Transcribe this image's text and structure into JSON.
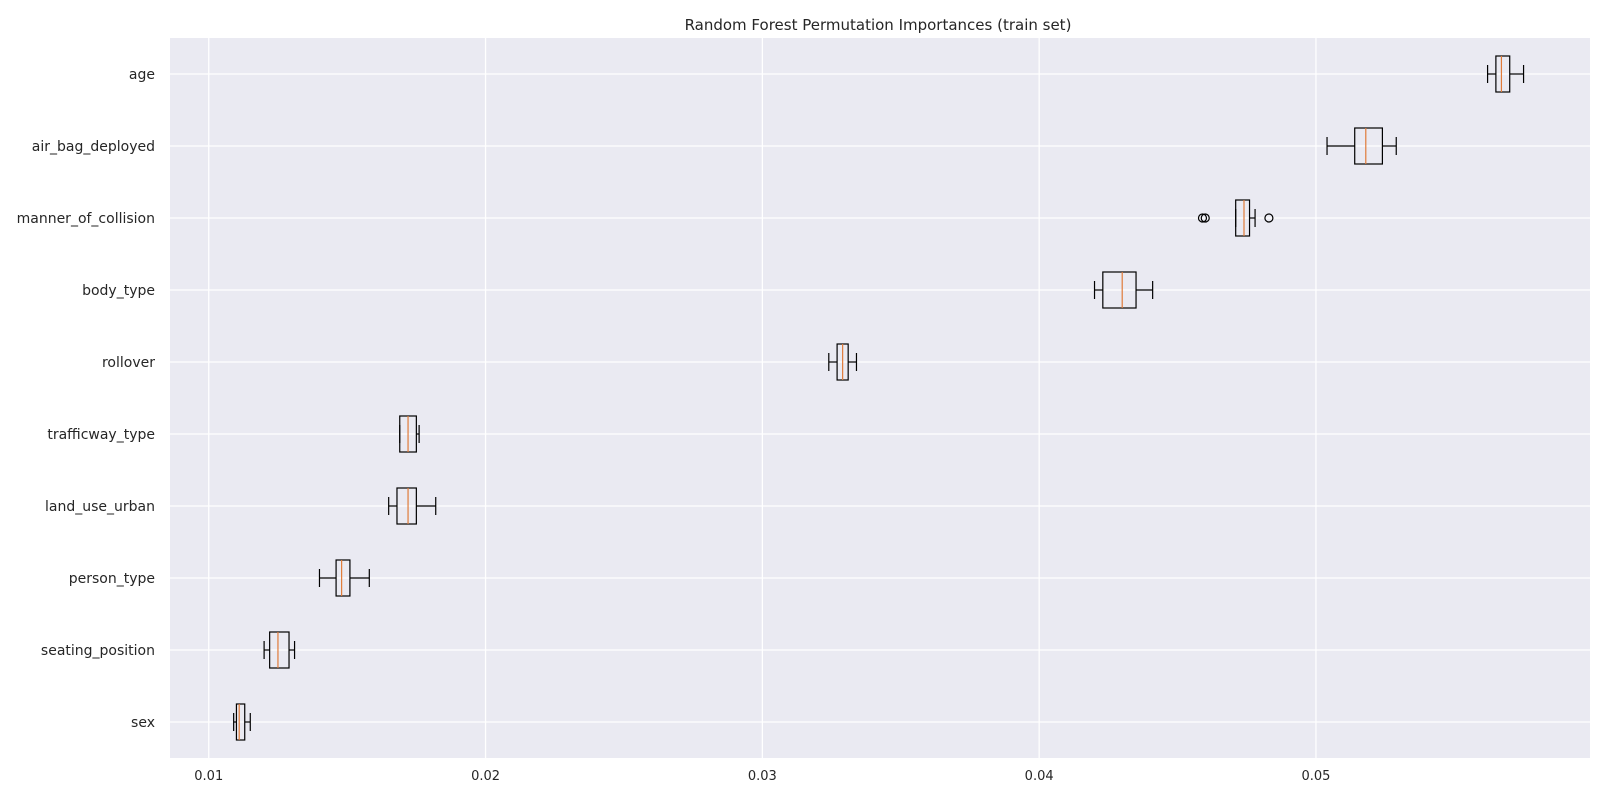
{
  "chart_data": {
    "type": "boxplot",
    "orientation": "horizontal",
    "title": "Random Forest Permutation Importances (train set)",
    "xlabel": "",
    "ylabel": "",
    "xlim": [
      0.0086,
      0.0599
    ],
    "xticks": [
      0.01,
      0.02,
      0.03,
      0.04,
      0.05
    ],
    "xtick_labels": [
      "0.01",
      "0.02",
      "0.03",
      "0.04",
      "0.05"
    ],
    "grid": true,
    "background": "#eaeaf2",
    "grid_color": "#ffffff",
    "box_color": "#000000",
    "median_color": "#e07b39",
    "categories": [
      "age",
      "air_bag_deployed",
      "manner_of_collision",
      "body_type",
      "rollover",
      "trafficway_type",
      "land_use_urban",
      "person_type",
      "seating_position",
      "sex"
    ],
    "boxes": [
      {
        "label": "age",
        "whislo": 0.0562,
        "q1": 0.0565,
        "med": 0.0567,
        "q3": 0.057,
        "whishi": 0.0575,
        "fliers": []
      },
      {
        "label": "air_bag_deployed",
        "whislo": 0.0504,
        "q1": 0.0514,
        "med": 0.0518,
        "q3": 0.0524,
        "whishi": 0.0529,
        "fliers": []
      },
      {
        "label": "manner_of_collision",
        "whislo": 0.0471,
        "q1": 0.0471,
        "med": 0.0474,
        "q3": 0.0476,
        "whishi": 0.0478,
        "fliers": [
          0.0459,
          0.046,
          0.0483
        ]
      },
      {
        "label": "body_type",
        "whislo": 0.042,
        "q1": 0.0423,
        "med": 0.043,
        "q3": 0.0435,
        "whishi": 0.0441,
        "fliers": []
      },
      {
        "label": "rollover",
        "whislo": 0.0324,
        "q1": 0.0327,
        "med": 0.0329,
        "q3": 0.0331,
        "whishi": 0.0334,
        "fliers": []
      },
      {
        "label": "trafficway_type",
        "whislo": 0.0169,
        "q1": 0.0169,
        "med": 0.0172,
        "q3": 0.0175,
        "whishi": 0.0176,
        "fliers": []
      },
      {
        "label": "land_use_urban",
        "whislo": 0.0165,
        "q1": 0.0168,
        "med": 0.0172,
        "q3": 0.0175,
        "whishi": 0.0182,
        "fliers": []
      },
      {
        "label": "person_type",
        "whislo": 0.014,
        "q1": 0.0146,
        "med": 0.0148,
        "q3": 0.0151,
        "whishi": 0.0158,
        "fliers": []
      },
      {
        "label": "seating_position",
        "whislo": 0.012,
        "q1": 0.0122,
        "med": 0.0125,
        "q3": 0.0129,
        "whishi": 0.0131,
        "fliers": []
      },
      {
        "label": "sex",
        "whislo": 0.0109,
        "q1": 0.011,
        "med": 0.0111,
        "q3": 0.0113,
        "whishi": 0.0115,
        "fliers": []
      }
    ]
  }
}
